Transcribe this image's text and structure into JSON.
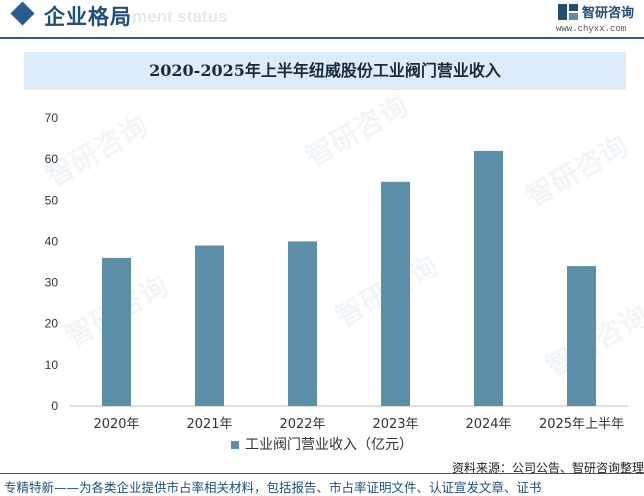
{
  "header": {
    "section_title": "企业格局",
    "section_subtitle": "ment status",
    "logo_name": "智研咨询",
    "logo_url": "www.chyxx.com"
  },
  "footer": {
    "source": "资料来源：公司公告、智研咨询整理",
    "note": "专精特新——为各类企业提供市占率相关材料，包括报告、市占率证明文件、认证宣发文章、证书"
  },
  "watermark": "智研咨询",
  "colors": {
    "bar": "#5b8fa8",
    "accent": "#2a5c8f",
    "title_bg": "#dcecf8"
  },
  "chart_data": {
    "type": "bar",
    "title": "2020-2025年上半年纽威股份工业阀门营业收入",
    "categories": [
      "2020年",
      "2021年",
      "2022年",
      "2023年",
      "2024年",
      "2025年上半年"
    ],
    "series": [
      {
        "name": "工业阀门营业收入（亿元）",
        "values": [
          36,
          39,
          40,
          54.5,
          62,
          34
        ]
      }
    ],
    "ylim": [
      0,
      70
    ],
    "yticks": [
      0,
      10,
      20,
      30,
      40,
      50,
      60,
      70
    ],
    "grid": false,
    "legend_position": "bottom"
  }
}
